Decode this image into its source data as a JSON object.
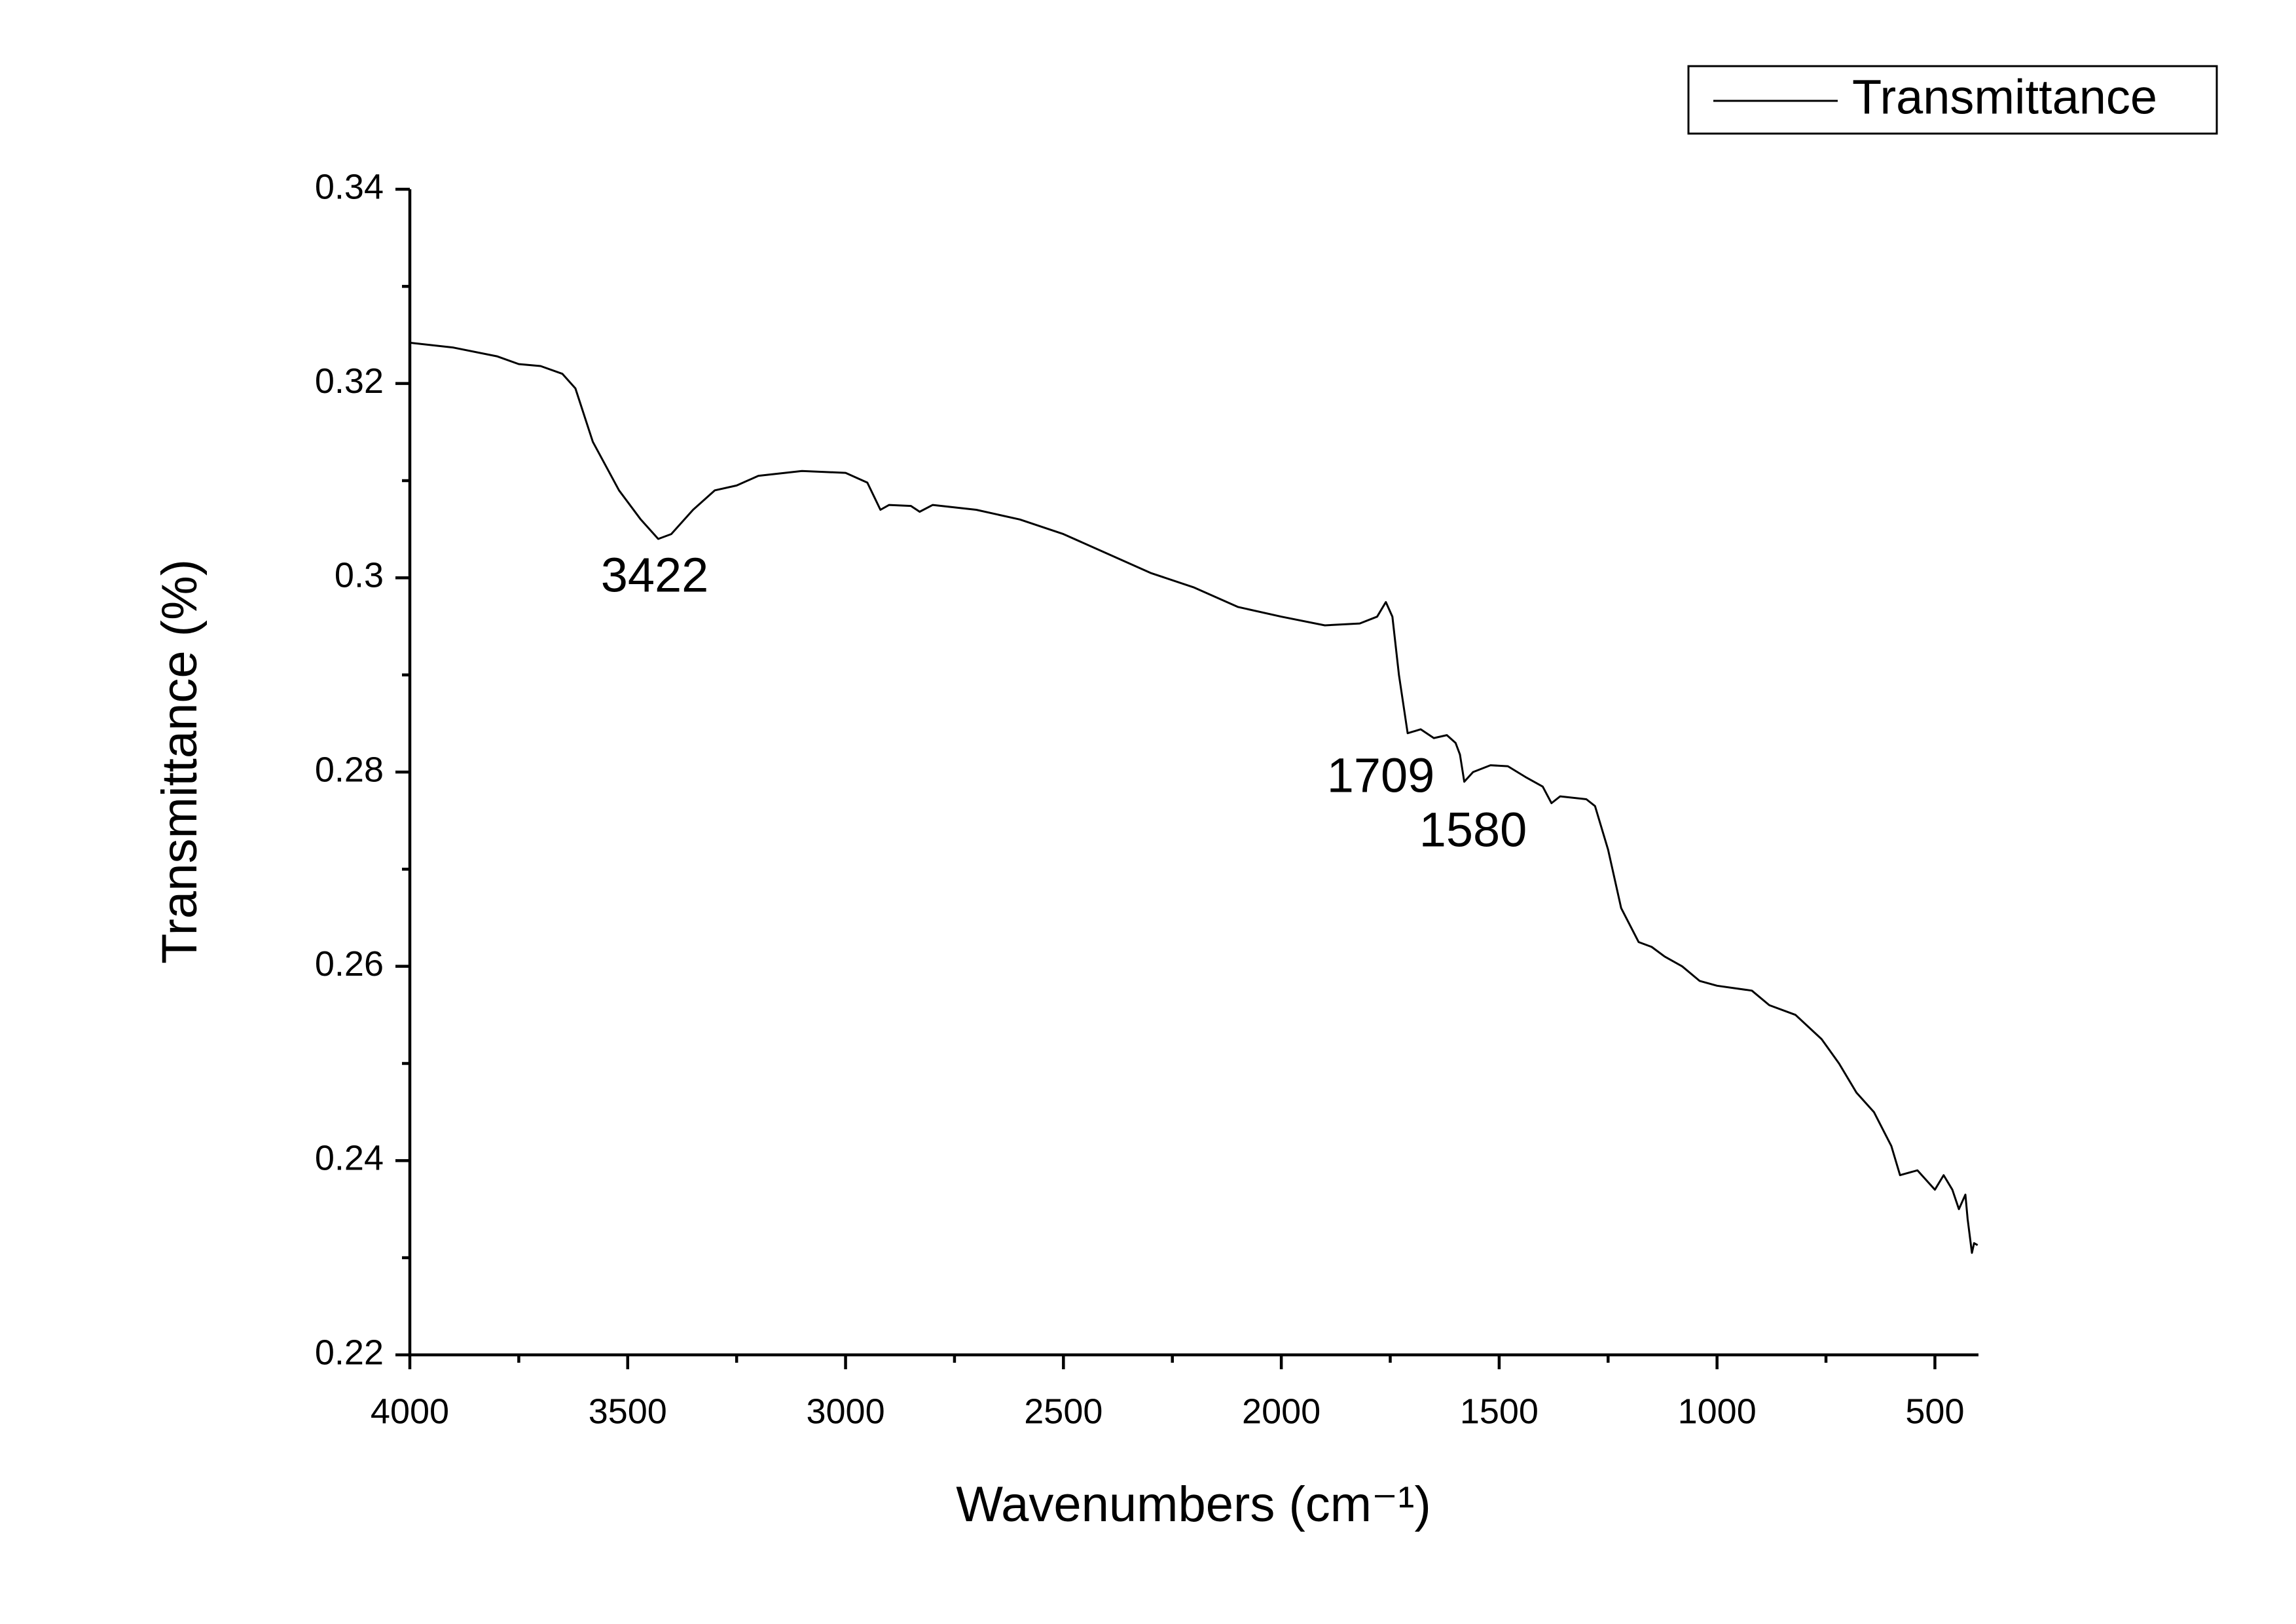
{
  "chart_data": {
    "type": "line",
    "x_label": "Wavenumbers (cm⁻¹)",
    "y_label": "Transmittance (%)",
    "legend": "top-right",
    "xlim": [
      4000,
      400
    ],
    "ylim": [
      0.22,
      0.34
    ],
    "xticks": [
      4000,
      3500,
      3000,
      2500,
      2000,
      1500,
      1000,
      500
    ],
    "yticks": [
      0.22,
      0.24,
      0.26,
      0.28,
      0.3,
      0.32,
      0.34
    ],
    "annotations": [
      "3422",
      "1709",
      "1580"
    ],
    "x": [
      4000,
      3900,
      3800,
      3750,
      3700,
      3650,
      3620,
      3580,
      3520,
      3470,
      3430,
      3400,
      3350,
      3300,
      3250,
      3200,
      3100,
      3000,
      2950,
      2920,
      2900,
      2850,
      2830,
      2800,
      2700,
      2600,
      2500,
      2400,
      2300,
      2200,
      2100,
      2000,
      1900,
      1820,
      1780,
      1760,
      1745,
      1730,
      1710,
      1680,
      1650,
      1620,
      1600,
      1590,
      1580,
      1560,
      1520,
      1480,
      1440,
      1400,
      1380,
      1360,
      1300,
      1280,
      1250,
      1220,
      1180,
      1150,
      1120,
      1080,
      1040,
      1000,
      920,
      880,
      820,
      760,
      720,
      680,
      640,
      600,
      580,
      540,
      520,
      500,
      480,
      460,
      445,
      430,
      425,
      415,
      410,
      402
    ],
    "series": [
      {
        "name": "Transmittance",
        "color": "#000000",
        "values": [
          0.3242,
          0.3237,
          0.3228,
          0.322,
          0.3218,
          0.321,
          0.3195,
          0.314,
          0.309,
          0.306,
          0.304,
          0.3045,
          0.307,
          0.309,
          0.3095,
          0.3105,
          0.311,
          0.3108,
          0.3098,
          0.307,
          0.3075,
          0.3074,
          0.3068,
          0.3075,
          0.307,
          0.306,
          0.3045,
          0.3025,
          0.3005,
          0.299,
          0.297,
          0.296,
          0.2951,
          0.2953,
          0.296,
          0.2975,
          0.296,
          0.29,
          0.284,
          0.2844,
          0.2835,
          0.2838,
          0.283,
          0.2818,
          0.279,
          0.28,
          0.2807,
          0.2806,
          0.2795,
          0.2785,
          0.2768,
          0.2775,
          0.2772,
          0.2765,
          0.272,
          0.266,
          0.2625,
          0.262,
          0.261,
          0.26,
          0.2585,
          0.258,
          0.2575,
          0.256,
          0.255,
          0.2525,
          0.25,
          0.247,
          0.245,
          0.2415,
          0.2385,
          0.239,
          0.238,
          0.237,
          0.2385,
          0.237,
          0.235,
          0.2365,
          0.234,
          0.2305,
          0.2315,
          0.2313
        ]
      }
    ]
  }
}
